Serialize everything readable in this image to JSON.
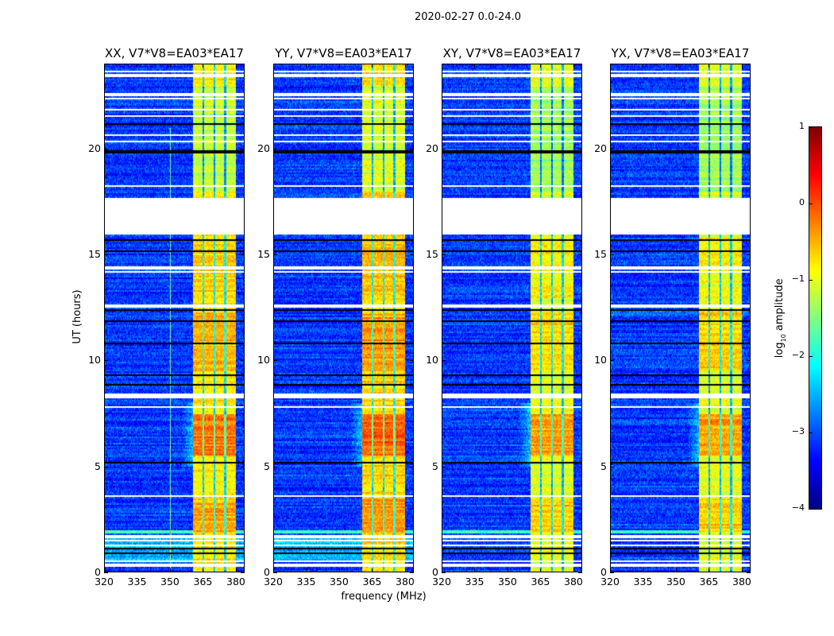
{
  "chart_data": {
    "type": "heatmap",
    "suptitle": "2020-02-27 0.0-24.0",
    "xlabel": "frequency (MHz)",
    "ylabel": "UT (hours)",
    "xlim": [
      320,
      384
    ],
    "ylim": [
      0,
      24
    ],
    "xticks": [
      320,
      335,
      350,
      365,
      380
    ],
    "yticks": [
      0,
      5,
      10,
      15,
      20
    ],
    "panels": [
      {
        "title": "XX, V7*V8=EA03*EA17",
        "band_mean": -0.8
      },
      {
        "title": "YY, V7*V8=EA03*EA17",
        "band_mean": -0.7
      },
      {
        "title": "XY, V7*V8=EA03*EA17",
        "band_mean": -1.0
      },
      {
        "title": "YX, V7*V8=EA03*EA17",
        "band_mean": -1.0
      }
    ],
    "strong_band_mhz": [
      360.5,
      380
    ],
    "background_level": -3.1,
    "data_gap_hours": [
      16.0,
      17.7
    ],
    "colorbar": {
      "label_main": "log",
      "label_sub": "10",
      "label_rest": " amplitude",
      "range": [
        -4,
        1
      ],
      "ticks": [
        "1",
        "0",
        "−1",
        "−2",
        "−3",
        "−4"
      ],
      "tick_values": [
        1,
        0,
        -1,
        -2,
        -3,
        -4
      ],
      "colormap": "jet"
    }
  }
}
